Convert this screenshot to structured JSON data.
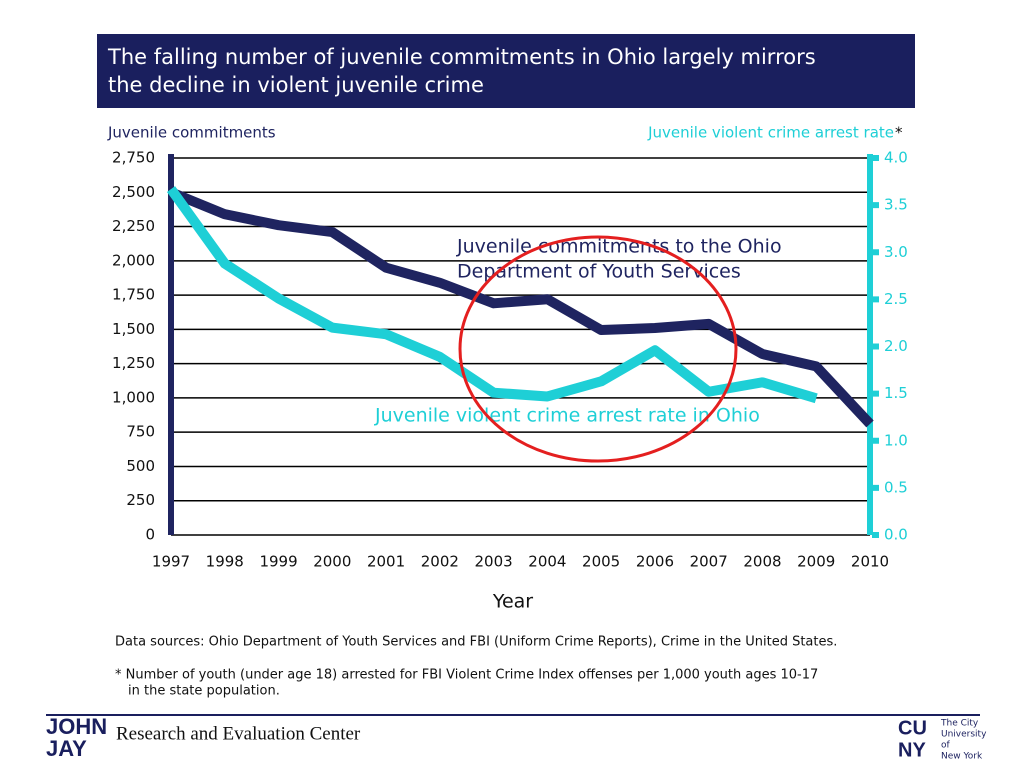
{
  "chart_data": {
    "type": "line",
    "title": [
      "The falling number of juvenile commitments in Ohio largely mirrors",
      "the decline in violent juvenile crime"
    ],
    "ylabel": "Juvenile commitments",
    "y2label": "Juvenile violent crime arrest rate",
    "y2label_mark": "*",
    "xlabel": "Year",
    "x": [
      1997,
      1998,
      1999,
      2000,
      2001,
      2002,
      2003,
      2004,
      2005,
      2006,
      2007,
      2008,
      2009,
      2010
    ],
    "xlim": [
      1997,
      2010
    ],
    "xticks": [
      1997,
      1998,
      1999,
      2000,
      2001,
      2002,
      2003,
      2004,
      2005,
      2006,
      2007,
      2008,
      2009,
      2010
    ],
    "ylim": [
      0,
      2750
    ],
    "yticks": [
      0,
      250,
      500,
      750,
      {
        "value": 1000,
        "label": "1,000"
      },
      {
        "value": 1250,
        "label": "1,250"
      },
      {
        "value": 1500,
        "label": "1,500"
      },
      {
        "value": 1750,
        "label": "1,750"
      },
      {
        "value": 2000,
        "label": "2,000"
      },
      {
        "value": 2250,
        "label": "2,250"
      },
      {
        "value": 2500,
        "label": "2,500"
      },
      {
        "value": 2750,
        "label": "2,750"
      }
    ],
    "y2lim": [
      0,
      4
    ],
    "y2ticks": [
      {
        "value": 0,
        "label": "0.0"
      },
      0.5,
      {
        "value": 1,
        "label": "1.0"
      },
      1.5,
      {
        "value": 2,
        "label": "2.0"
      },
      2.5,
      {
        "value": 3,
        "label": "3.0"
      },
      3.5,
      {
        "value": 4,
        "label": "4.0"
      }
    ],
    "grid": true,
    "series": [
      {
        "name": [
          "Juvenile  commitments  to the Ohio",
          "Department of Youth Services"
        ],
        "color": "#1f2460",
        "axis": "y",
        "values": [
          2500,
          2340,
          2260,
          2210,
          1950,
          1840,
          1690,
          1720,
          1495,
          1510,
          1540,
          1320,
          1230,
          810
        ]
      },
      {
        "name": [
          "Juvenile  violent crime arrest rate in Ohio"
        ],
        "color": "#1ecfd6",
        "axis": "y2",
        "values": [
          3.67,
          2.88,
          2.51,
          2.2,
          2.13,
          1.89,
          1.51,
          1.47,
          1.63,
          1.96,
          1.52,
          1.62,
          1.45,
          null
        ]
      }
    ],
    "sources": "Data sources: Ohio Department of Youth Services and FBI (Uniform Crime Reports), Crime in the United States.",
    "footnote": [
      "* Number of youth (under age 18) arrested for FBI Violent Crime Index offenses per 1,000 youth ages 10-17",
      "in the state population."
    ]
  },
  "footer": {
    "center": "Research and Evaluation Center",
    "logo_left": [
      "JOHN",
      "JAY"
    ],
    "logo_right": [
      "CU",
      "NY"
    ],
    "logo_right_text": [
      "The City",
      "University",
      "of",
      "New York"
    ]
  }
}
